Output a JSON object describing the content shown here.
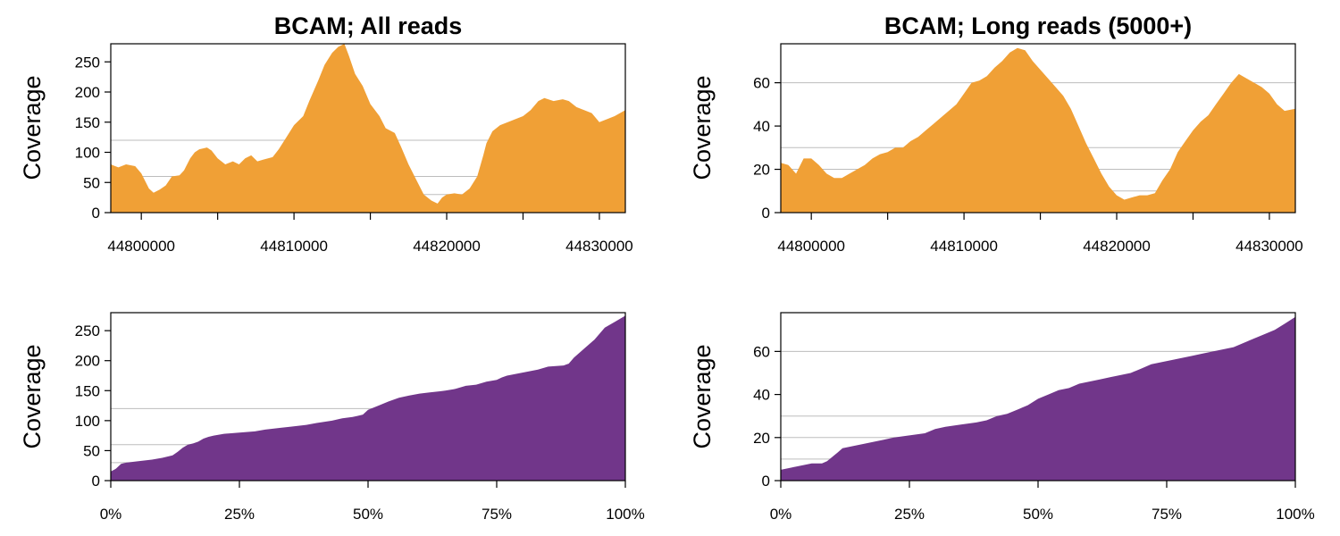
{
  "colors": {
    "coverage": "#F0A036",
    "sorted": "#71368A",
    "grid": "#bdbdbd"
  },
  "chart_data": [
    {
      "id": "p1",
      "type": "area",
      "title": "BCAM; All reads",
      "ylabel": "Coverage",
      "xlim": [
        44798000,
        44831700
      ],
      "ylim": [
        0,
        280
      ],
      "xticks": [
        44800000,
        44805000,
        44810000,
        44815000,
        44820000,
        44825000,
        44830000
      ],
      "xtick_labels": [
        "44800000",
        "",
        "44810000",
        "",
        "44820000",
        "",
        "44830000"
      ],
      "yticks": [
        0,
        50,
        100,
        150,
        200,
        250
      ],
      "ytick_labels": [
        "0",
        "50",
        "100",
        "150",
        "200",
        "250"
      ],
      "hlines": [
        30,
        60,
        120
      ],
      "color": "#F0A036",
      "x": [
        44798000,
        44798500,
        44799000,
        44799600,
        44800000,
        44800500,
        44800800,
        44801200,
        44801600,
        44802000,
        44802500,
        44802800,
        44803200,
        44803500,
        44803800,
        44804300,
        44804600,
        44805000,
        44805500,
        44806000,
        44806400,
        44806800,
        44807200,
        44807600,
        44808000,
        44808600,
        44809000,
        44809500,
        44810000,
        44810600,
        44811000,
        44811600,
        44812000,
        44812500,
        44812900,
        44813300,
        44813600,
        44814000,
        44814500,
        44815000,
        44815600,
        44816000,
        44816600,
        44817000,
        44817500,
        44818000,
        44818500,
        44819000,
        44819400,
        44819700,
        44820000,
        44820500,
        44821000,
        44821500,
        44822000,
        44822400,
        44822600,
        44823000,
        44823500,
        44824000,
        44824500,
        44825000,
        44825500,
        44826000,
        44826400,
        44827000,
        44827600,
        44828000,
        44828500,
        44829000,
        44829500,
        44830000,
        44830500,
        44831000,
        44831700
      ],
      "y": [
        80,
        75,
        80,
        77,
        65,
        40,
        33,
        38,
        45,
        60,
        62,
        70,
        90,
        100,
        105,
        108,
        103,
        90,
        80,
        85,
        80,
        90,
        95,
        85,
        88,
        92,
        105,
        125,
        145,
        160,
        185,
        220,
        245,
        265,
        275,
        280,
        260,
        230,
        210,
        180,
        160,
        140,
        132,
        110,
        80,
        55,
        30,
        20,
        15,
        25,
        30,
        32,
        30,
        40,
        60,
        95,
        115,
        135,
        145,
        150,
        155,
        160,
        170,
        185,
        190,
        185,
        188,
        185,
        175,
        170,
        165,
        150,
        155,
        160,
        170
      ]
    },
    {
      "id": "p2",
      "type": "area",
      "title": "BCAM; Long reads (5000+)",
      "ylabel": "Coverage",
      "xlim": [
        44798000,
        44831700
      ],
      "ylim": [
        0,
        78
      ],
      "xticks": [
        44800000,
        44805000,
        44810000,
        44815000,
        44820000,
        44825000,
        44830000
      ],
      "xtick_labels": [
        "44800000",
        "",
        "44810000",
        "",
        "44820000",
        "",
        "44830000"
      ],
      "yticks": [
        0,
        20,
        40,
        60
      ],
      "ytick_labels": [
        "0",
        "20",
        "40",
        "60"
      ],
      "hlines": [
        10,
        20,
        30,
        60
      ],
      "color": "#F0A036",
      "x": [
        44798000,
        44798500,
        44799000,
        44799500,
        44800000,
        44800500,
        44801000,
        44801500,
        44802000,
        44802500,
        44803000,
        44803500,
        44804000,
        44804500,
        44805000,
        44805500,
        44806000,
        44806500,
        44807000,
        44807500,
        44808000,
        44808500,
        44809000,
        44809500,
        44810000,
        44810500,
        44811000,
        44811500,
        44812000,
        44812500,
        44813000,
        44813500,
        44814000,
        44814500,
        44815000,
        44815500,
        44816000,
        44816500,
        44817000,
        44817500,
        44818000,
        44818500,
        44819000,
        44819500,
        44820000,
        44820500,
        44821000,
        44821500,
        44822000,
        44822500,
        44823000,
        44823500,
        44824000,
        44824500,
        44825000,
        44825500,
        44826000,
        44826500,
        44827000,
        44827500,
        44828000,
        44828500,
        44829000,
        44829500,
        44830000,
        44830500,
        44831000,
        44831700
      ],
      "y": [
        23,
        22,
        18,
        25,
        25,
        22,
        18,
        16,
        16,
        18,
        20,
        22,
        25,
        27,
        28,
        30,
        30,
        33,
        35,
        38,
        41,
        44,
        47,
        50,
        55,
        60,
        61,
        63,
        67,
        70,
        74,
        76,
        75,
        70,
        66,
        62,
        58,
        54,
        48,
        40,
        32,
        25,
        18,
        12,
        8,
        6,
        7,
        8,
        8,
        9,
        15,
        20,
        28,
        33,
        38,
        42,
        45,
        50,
        55,
        60,
        64,
        62,
        60,
        58,
        55,
        50,
        47,
        48
      ]
    },
    {
      "id": "p3",
      "type": "area",
      "ylabel": "Coverage",
      "xlim": [
        0,
        100
      ],
      "ylim": [
        0,
        280
      ],
      "xticks": [
        0,
        25,
        50,
        75,
        100
      ],
      "xtick_labels": [
        "0%",
        "25%",
        "50%",
        "75%",
        "100%"
      ],
      "yticks": [
        0,
        50,
        100,
        150,
        200,
        250
      ],
      "ytick_labels": [
        "0",
        "50",
        "100",
        "150",
        "200",
        "250"
      ],
      "hlines": [
        30,
        60,
        120
      ],
      "color": "#71368A",
      "x": [
        0,
        1,
        2,
        3,
        5,
        8,
        10,
        12,
        13,
        14,
        15,
        16,
        17,
        18,
        19,
        20,
        22,
        25,
        28,
        30,
        33,
        35,
        38,
        40,
        43,
        45,
        47,
        48,
        49,
        50,
        52,
        54,
        56,
        58,
        60,
        62,
        64,
        65,
        67,
        69,
        71,
        73,
        75,
        76,
        77,
        80,
        83,
        85,
        88,
        89,
        90,
        92,
        94,
        96,
        98,
        100
      ],
      "y": [
        15,
        20,
        28,
        30,
        32,
        35,
        38,
        42,
        48,
        55,
        60,
        62,
        65,
        70,
        73,
        75,
        78,
        80,
        82,
        85,
        88,
        90,
        93,
        96,
        100,
        104,
        106,
        108,
        110,
        118,
        125,
        132,
        138,
        142,
        145,
        147,
        149,
        150,
        153,
        158,
        160,
        165,
        168,
        172,
        175,
        180,
        185,
        190,
        192,
        195,
        205,
        220,
        235,
        255,
        265,
        275
      ]
    },
    {
      "id": "p4",
      "type": "area",
      "ylabel": "Coverage",
      "xlim": [
        0,
        100
      ],
      "ylim": [
        0,
        78
      ],
      "xticks": [
        0,
        25,
        50,
        75,
        100
      ],
      "xtick_labels": [
        "0%",
        "25%",
        "50%",
        "75%",
        "100%"
      ],
      "yticks": [
        0,
        20,
        40,
        60
      ],
      "ytick_labels": [
        "0",
        "20",
        "40",
        "60"
      ],
      "hlines": [
        10,
        20,
        30,
        60
      ],
      "color": "#71368A",
      "x": [
        0,
        2,
        4,
        6,
        8,
        9,
        10,
        11,
        12,
        14,
        16,
        18,
        20,
        22,
        25,
        28,
        30,
        32,
        35,
        38,
        40,
        42,
        44,
        46,
        48,
        50,
        52,
        54,
        56,
        58,
        60,
        62,
        64,
        66,
        68,
        70,
        72,
        74,
        76,
        78,
        80,
        82,
        84,
        86,
        88,
        90,
        92,
        94,
        96,
        98,
        100
      ],
      "y": [
        5,
        6,
        7,
        8,
        8,
        9,
        11,
        13,
        15,
        16,
        17,
        18,
        19,
        20,
        21,
        22,
        24,
        25,
        26,
        27,
        28,
        30,
        31,
        33,
        35,
        38,
        40,
        42,
        43,
        45,
        46,
        47,
        48,
        49,
        50,
        52,
        54,
        55,
        56,
        57,
        58,
        59,
        60,
        61,
        62,
        64,
        66,
        68,
        70,
        73,
        76
      ]
    }
  ]
}
